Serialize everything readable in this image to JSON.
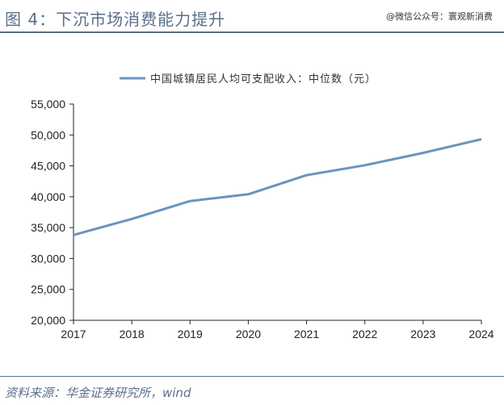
{
  "header": {
    "title": "图 4：下沉市场消费能力提升",
    "watermark": "@微信公众号：寰观新消费"
  },
  "footer": {
    "source": "资料来源：华金证券研究所，wind"
  },
  "colors": {
    "line": "#6b93bf",
    "accent": "#5b6f8a",
    "axis": "#222222"
  },
  "chart_data": {
    "type": "line",
    "title": "",
    "xlabel": "",
    "ylabel": "",
    "x": [
      "2017",
      "2018",
      "2019",
      "2020",
      "2021",
      "2022",
      "2023",
      "2024"
    ],
    "series": [
      {
        "name": "中国城镇居民人均可支配收入：中位数（元）",
        "values": [
          33800,
          36400,
          39300,
          40400,
          43500,
          45100,
          47100,
          49300
        ]
      }
    ],
    "ylim": [
      20000,
      55000
    ],
    "yticks": [
      "20,000",
      "25,000",
      "30,000",
      "35,000",
      "40,000",
      "45,000",
      "50,000",
      "55,000"
    ],
    "ytick_values": [
      20000,
      25000,
      30000,
      35000,
      40000,
      45000,
      50000,
      55000
    ],
    "grid": false,
    "legend_position": "top"
  }
}
